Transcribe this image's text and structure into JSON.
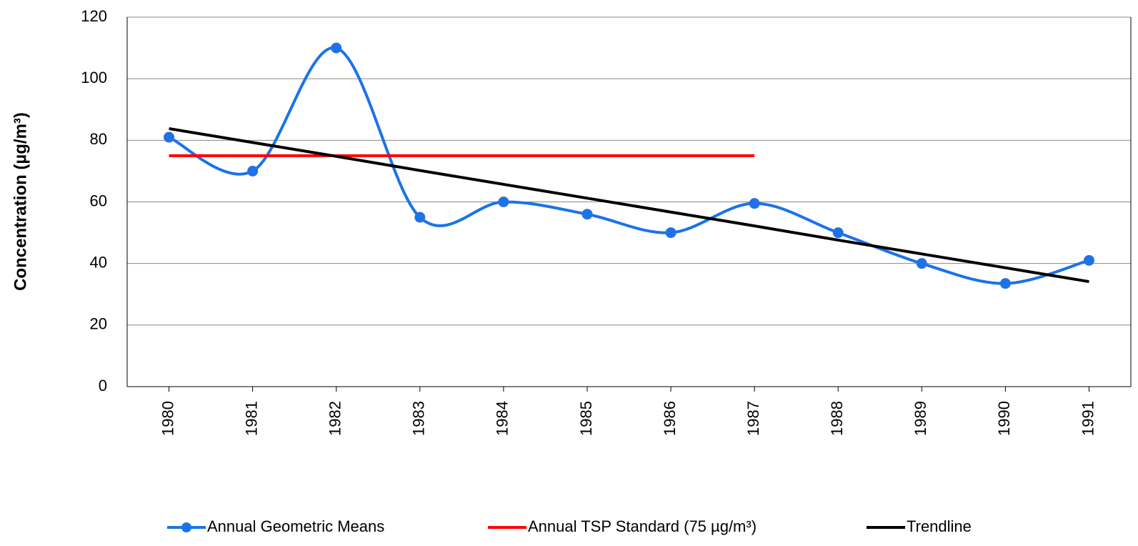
{
  "chart_data": {
    "type": "line",
    "y_label": "Concentration (µg/m³)",
    "categories": [
      "1980",
      "1981",
      "1982",
      "1983",
      "1984",
      "1985",
      "1986",
      "1987",
      "1988",
      "1989",
      "1990",
      "1991"
    ],
    "series": [
      {
        "name": "Annual Geometric Means",
        "color": "#1a73e8",
        "smooth": true,
        "markers": true,
        "values": [
          81,
          70,
          110,
          55,
          60,
          56,
          50,
          59.5,
          50,
          40,
          33.5,
          41
        ]
      },
      {
        "name": "Annual TSP Standard (75 µg/m³)",
        "color": "#ff0000",
        "smooth": false,
        "markers": false,
        "values": [
          75,
          75,
          75,
          75,
          75,
          75,
          75,
          75,
          null,
          null,
          null,
          null
        ]
      },
      {
        "name": "Trendline",
        "color": "#000000",
        "smooth": false,
        "markers": false,
        "values": [
          83.8,
          79.3,
          74.8,
          70.2,
          65.7,
          61.2,
          56.7,
          52.2,
          47.6,
          43.1,
          38.6,
          34.1
        ]
      }
    ],
    "ylim": [
      0,
      120
    ],
    "yticks": [
      0,
      20,
      40,
      60,
      80,
      100,
      120
    ],
    "grid": true,
    "legend": "bottom"
  }
}
